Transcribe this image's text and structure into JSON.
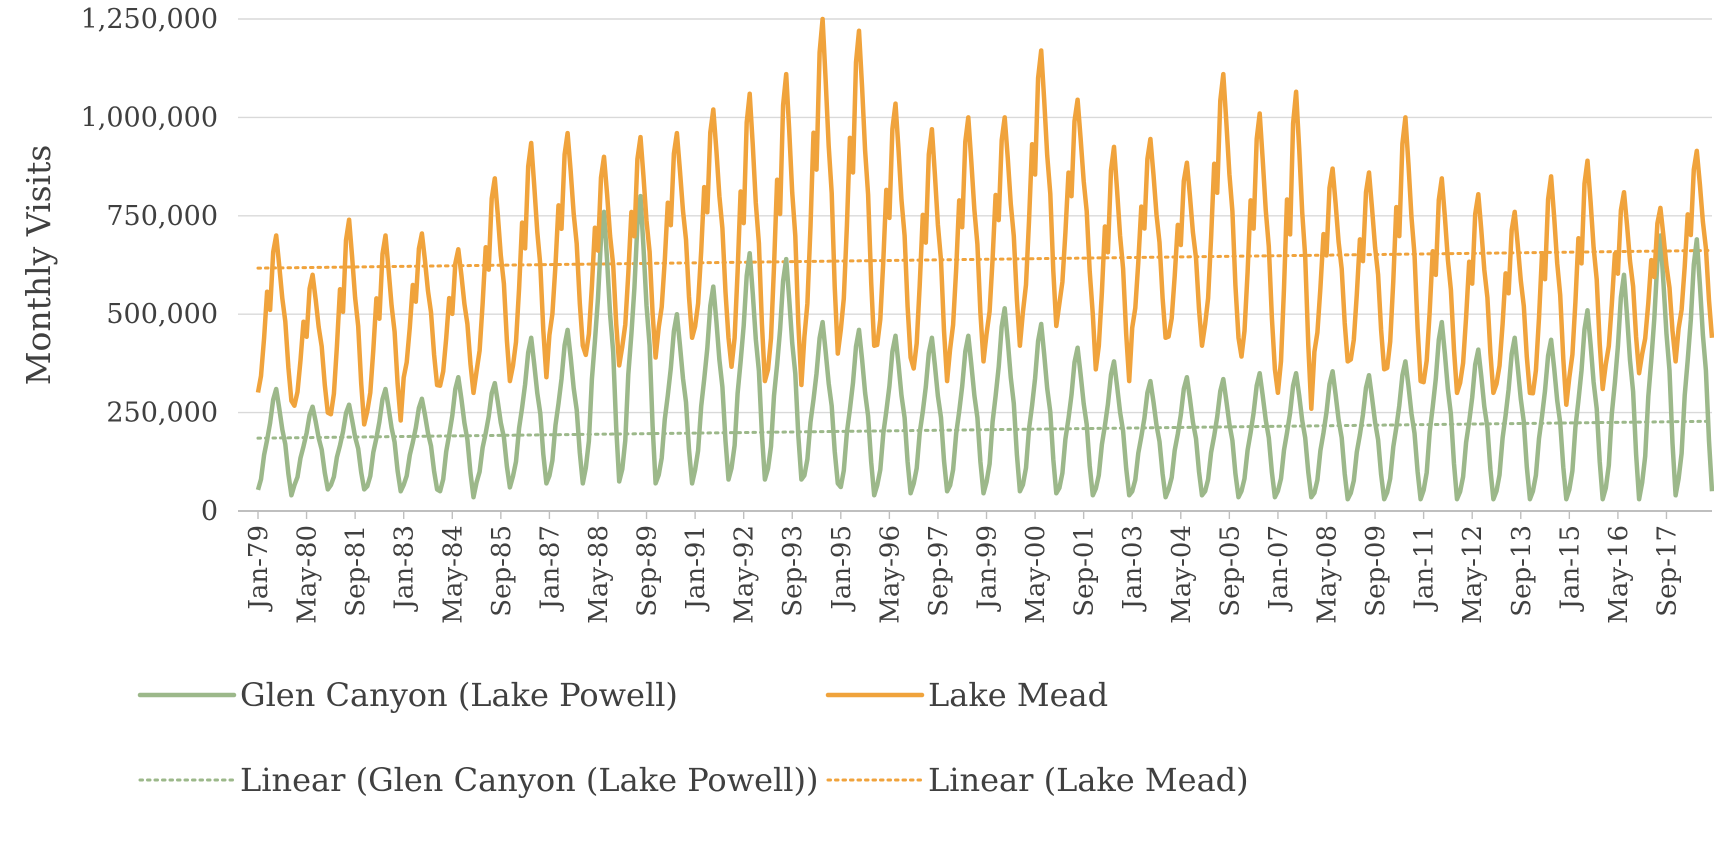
{
  "chart_data": {
    "type": "line",
    "title": "",
    "xlabel": "",
    "ylabel": "Monthly Visits",
    "ylim": [
      0,
      1250000
    ],
    "y_ticks": [
      0,
      250000,
      500000,
      750000,
      1000000,
      1250000
    ],
    "y_tick_labels": [
      "0",
      "250,000",
      "500,000",
      "750,000",
      "1,000,000",
      "1,250,000"
    ],
    "x_start": "1979-01",
    "x_end": "2018-12",
    "x_tick_labels": [
      "Jan-79",
      "May-80",
      "Sep-81",
      "Jan-83",
      "May-84",
      "Sep-85",
      "Jan-87",
      "May-88",
      "Sep-89",
      "Jan-91",
      "May-92",
      "Sep-93",
      "Jan-95",
      "May-96",
      "Sep-97",
      "Jan-99",
      "May-00",
      "Sep-01",
      "Jan-03",
      "May-04",
      "Sep-05",
      "Jan-07",
      "May-08",
      "Sep-09",
      "Jan-11",
      "May-12",
      "Sep-13",
      "Jan-15",
      "May-16",
      "Sep-17"
    ],
    "grid": true,
    "legend_position": "bottom",
    "series_style": {
      "monthly_pattern": "seasonal peak in July, trough in December–January",
      "note": "annual peak and trough values (monthly visits) per calendar year"
    },
    "series": [
      {
        "name": "Glen Canyon (Lake Powell)",
        "color": "#9cb88a",
        "style": "solid",
        "years": [
          1979,
          1980,
          1981,
          1982,
          1983,
          1984,
          1985,
          1986,
          1987,
          1988,
          1989,
          1990,
          1991,
          1992,
          1993,
          1994,
          1995,
          1996,
          1997,
          1998,
          1999,
          2000,
          2001,
          2002,
          2003,
          2004,
          2005,
          2006,
          2007,
          2008,
          2009,
          2010,
          2011,
          2012,
          2013,
          2014,
          2015,
          2016,
          2017,
          2018
        ],
        "annual_peak": [
          310000,
          265000,
          270000,
          310000,
          285000,
          340000,
          325000,
          440000,
          460000,
          760000,
          800000,
          500000,
          570000,
          655000,
          640000,
          480000,
          460000,
          445000,
          440000,
          445000,
          515000,
          475000,
          415000,
          380000,
          330000,
          340000,
          335000,
          350000,
          350000,
          355000,
          345000,
          380000,
          480000,
          410000,
          440000,
          435000,
          510000,
          600000,
          700000,
          690000
        ],
        "annual_trough": [
          40000,
          55000,
          55000,
          50000,
          55000,
          35000,
          60000,
          70000,
          70000,
          75000,
          70000,
          70000,
          80000,
          80000,
          80000,
          70000,
          40000,
          45000,
          50000,
          45000,
          50000,
          45000,
          40000,
          40000,
          35000,
          40000,
          35000,
          35000,
          35000,
          30000,
          30000,
          30000,
          30000,
          30000,
          30000,
          30000,
          30000,
          30000,
          40000,
          50000
        ]
      },
      {
        "name": "Lake Mead",
        "color": "#f0a33c",
        "style": "solid",
        "years": [
          1979,
          1980,
          1981,
          1982,
          1983,
          1984,
          1985,
          1986,
          1987,
          1988,
          1989,
          1990,
          1991,
          1992,
          1993,
          1994,
          1995,
          1996,
          1997,
          1998,
          1999,
          2000,
          2001,
          2002,
          2003,
          2004,
          2005,
          2006,
          2007,
          2008,
          2009,
          2010,
          2011,
          2012,
          2013,
          2014,
          2015,
          2016,
          2017,
          2018
        ],
        "annual_peak": [
          700000,
          600000,
          740000,
          700000,
          705000,
          665000,
          845000,
          935000,
          960000,
          900000,
          950000,
          960000,
          1020000,
          1060000,
          1110000,
          1250000,
          1220000,
          1035000,
          970000,
          1000000,
          1000000,
          1170000,
          1045000,
          925000,
          945000,
          885000,
          1110000,
          1010000,
          1065000,
          870000,
          860000,
          1000000,
          845000,
          805000,
          760000,
          850000,
          890000,
          810000,
          770000,
          915000
        ],
        "annual_trough": [
          280000,
          250000,
          220000,
          230000,
          320000,
          300000,
          330000,
          340000,
          420000,
          370000,
          390000,
          440000,
          440000,
          330000,
          320000,
          400000,
          420000,
          390000,
          330000,
          380000,
          420000,
          470000,
          500000,
          330000,
          440000,
          420000,
          440000,
          360000,
          260000,
          380000,
          360000,
          330000,
          300000,
          300000,
          300000,
          270000,
          310000,
          350000,
          380000,
          440000
        ]
      },
      {
        "name": "Linear (Glen Canyon (Lake Powell))",
        "color": "#9cb88a",
        "style": "dotted",
        "trend_start": 185000,
        "trend_end": 228000
      },
      {
        "name": "Linear (Lake Mead)",
        "color": "#f0a33c",
        "style": "dotted",
        "trend_start": 617000,
        "trend_end": 662000
      }
    ]
  }
}
